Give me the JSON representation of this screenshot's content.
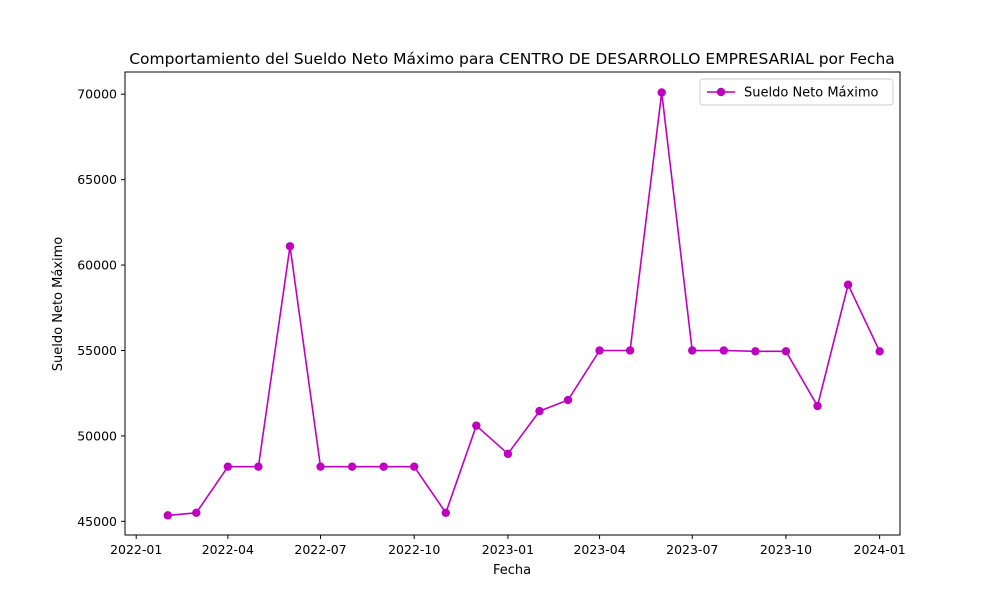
{
  "chart_data": {
    "type": "line",
    "title": "Comportamiento del Sueldo Neto Máximo para CENTRO DE DESARROLLO EMPRESARIAL por Fecha",
    "xlabel": "Fecha",
    "ylabel": "Sueldo Neto Máximo",
    "x_ticks": [
      "2022-01",
      "2022-04",
      "2022-07",
      "2022-10",
      "2023-01",
      "2023-04",
      "2023-07",
      "2023-10",
      "2024-01"
    ],
    "y_ticks": [
      45000,
      50000,
      55000,
      60000,
      65000,
      70000
    ],
    "xlim": [
      "2021-12-21",
      "2024-01-21"
    ],
    "ylim": [
      44200,
      71300
    ],
    "grid": false,
    "legend_position": "top-right",
    "colors": {
      "series": "#bf00bf"
    },
    "series": [
      {
        "name": "Sueldo Neto Máximo",
        "x": [
          "2022-02-01",
          "2022-03-01",
          "2022-04-01",
          "2022-05-01",
          "2022-06-01",
          "2022-07-01",
          "2022-08-01",
          "2022-09-01",
          "2022-10-01",
          "2022-11-01",
          "2022-12-01",
          "2023-01-01",
          "2023-02-01",
          "2023-03-01",
          "2023-04-01",
          "2023-05-01",
          "2023-06-01",
          "2023-07-01",
          "2023-08-01",
          "2023-09-01",
          "2023-10-01",
          "2023-11-01",
          "2023-12-01",
          "2024-01-01"
        ],
        "values": [
          45350,
          45500,
          48200,
          48200,
          61100,
          48200,
          48200,
          48200,
          48200,
          45500,
          50600,
          48950,
          51450,
          52100,
          55000,
          55000,
          70100,
          55000,
          55000,
          54950,
          54950,
          51750,
          58850,
          54950
        ]
      }
    ]
  }
}
